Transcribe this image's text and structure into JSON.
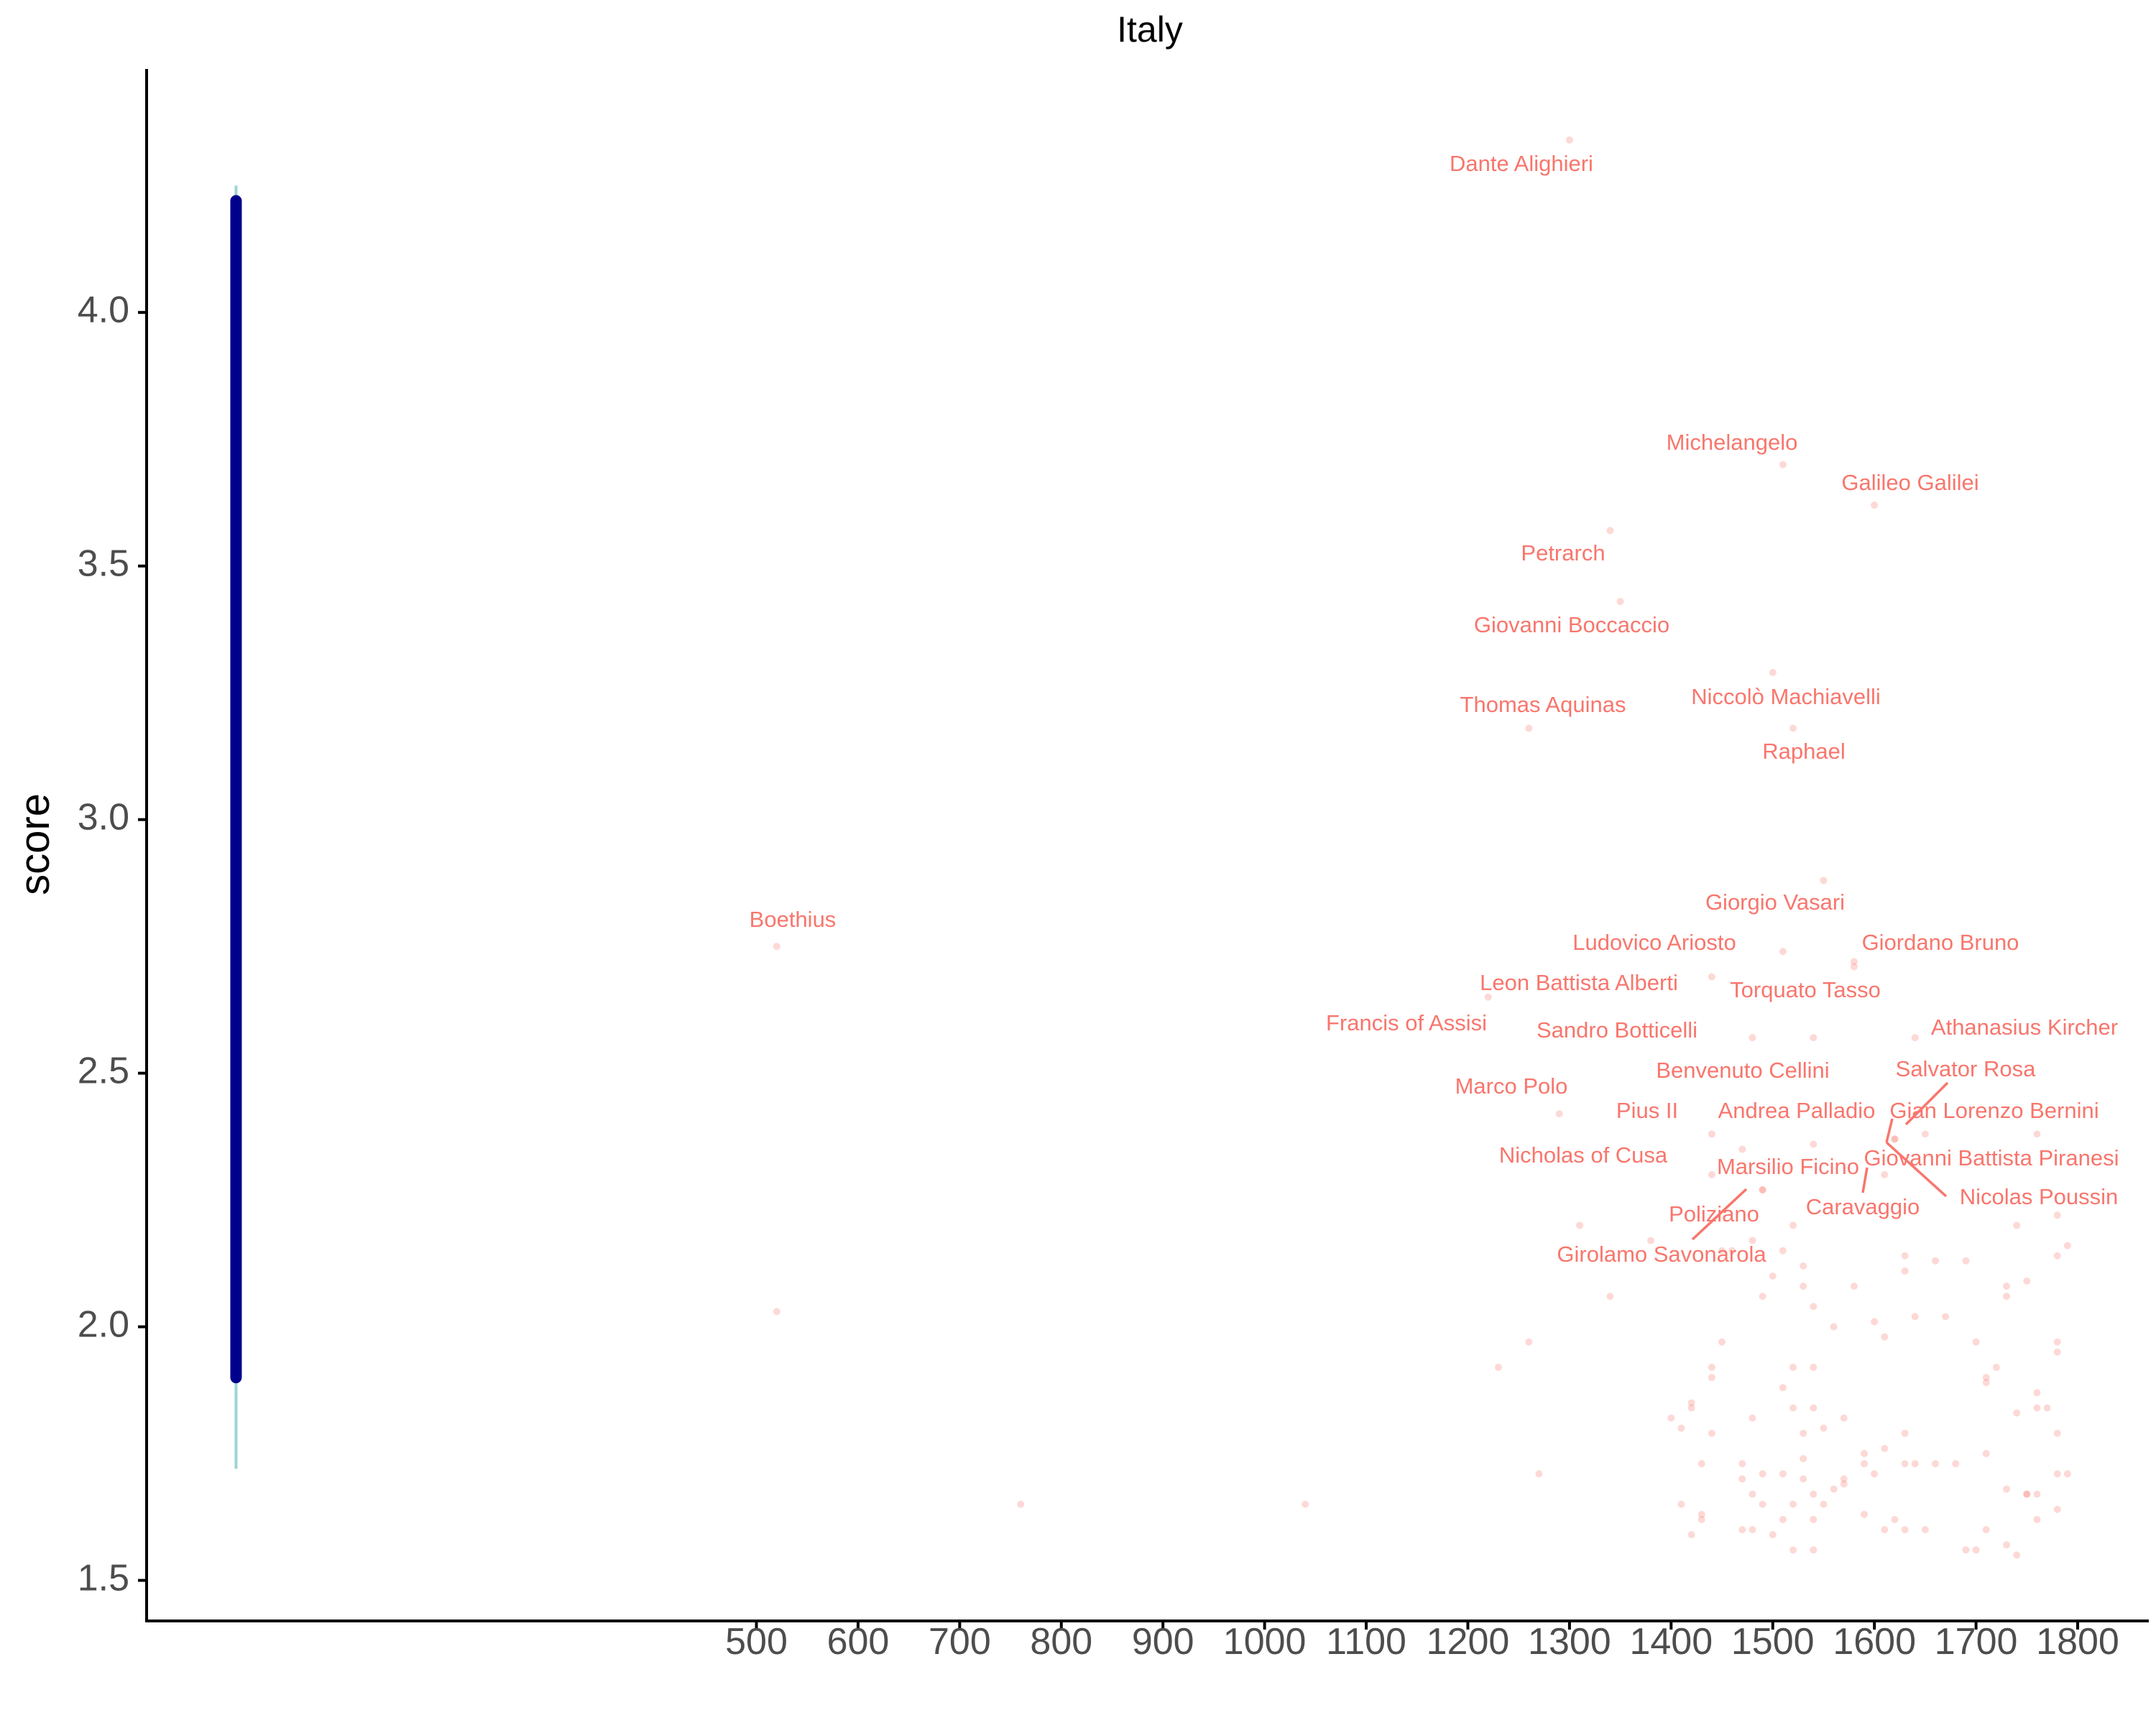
{
  "chart_data": {
    "type": "scatter",
    "title": "Italy",
    "xlabel": "",
    "ylabel": "score",
    "xlim": [
      -100,
      1870
    ],
    "ylim": [
      1.42,
      4.48
    ],
    "x_ticks": [
      "500",
      "600",
      "700",
      "800",
      "900",
      "1000",
      "1100",
      "1200",
      "1300",
      "1400",
      "1500",
      "1600",
      "1700",
      "1800"
    ],
    "y_ticks": [
      "1.5",
      "2.0",
      "2.5",
      "3.0",
      "3.5",
      "4.0"
    ],
    "grid": false,
    "legend": "none",
    "colors": {
      "points": "#f8766d",
      "labels": "#f8766d",
      "interval_outer": "#9fd3d6",
      "interval_inner": "#00008b",
      "axis": "#000000",
      "tick_text": "#4d4d4d"
    },
    "interval": {
      "x": -12,
      "outer": [
        1.72,
        4.25
      ],
      "inner": [
        1.9,
        4.22
      ]
    },
    "labeled_points": [
      {
        "name": "Dante Alighieri",
        "x": 1300,
        "y": 4.34
      },
      {
        "name": "Michelangelo",
        "x": 1510,
        "y": 3.7
      },
      {
        "name": "Galileo Galilei",
        "x": 1600,
        "y": 3.62
      },
      {
        "name": "Petrarch",
        "x": 1340,
        "y": 3.57
      },
      {
        "name": "Giovanni Boccaccio",
        "x": 1350,
        "y": 3.43
      },
      {
        "name": "Niccolò Machiavelli",
        "x": 1500,
        "y": 3.29
      },
      {
        "name": "Thomas Aquinas",
        "x": 1260,
        "y": 3.18
      },
      {
        "name": "Raphael",
        "x": 1520,
        "y": 3.18
      },
      {
        "name": "Boethius",
        "x": 520,
        "y": 2.75
      },
      {
        "name": "Giorgio Vasari",
        "x": 1550,
        "y": 2.88
      },
      {
        "name": "Ludovico Ariosto",
        "x": 1510,
        "y": 2.74
      },
      {
        "name": "Giordano Bruno",
        "x": 1580,
        "y": 2.72
      },
      {
        "name": "Leon Battista Alberti",
        "x": 1440,
        "y": 2.69
      },
      {
        "name": "Torquato Tasso",
        "x": 1580,
        "y": 2.71
      },
      {
        "name": "Francis of Assisi",
        "x": 1220,
        "y": 2.65
      },
      {
        "name": "Sandro Botticelli",
        "x": 1480,
        "y": 2.57
      },
      {
        "name": "Athanasius Kircher",
        "x": 1640,
        "y": 2.57
      },
      {
        "name": "Benvenuto Cellini",
        "x": 1540,
        "y": 2.57
      },
      {
        "name": "Salvator Rosa",
        "x": 1650,
        "y": 2.38
      },
      {
        "name": "Marco Polo",
        "x": 1290,
        "y": 2.42
      },
      {
        "name": "Pius II",
        "x": 1440,
        "y": 2.38
      },
      {
        "name": "Andrea Palladio",
        "x": 1540,
        "y": 2.36
      },
      {
        "name": "Gian Lorenzo Bernini",
        "x": 1760,
        "y": 2.38
      },
      {
        "name": "Nicholas of Cusa",
        "x": 1470,
        "y": 2.35
      },
      {
        "name": "Marsilio Ficino",
        "x": 1440,
        "y": 2.3
      },
      {
        "name": "Giovanni Battista Piranesi",
        "x": 1620,
        "y": 2.37
      },
      {
        "name": "Nicolas Poussin",
        "x": 1620,
        "y": 2.37
      },
      {
        "name": "Poliziano",
        "x": 1490,
        "y": 2.27
      },
      {
        "name": "Caravaggio",
        "x": 1610,
        "y": 2.3
      },
      {
        "name": "Girolamo Savonarola",
        "x": 1490,
        "y": 2.27
      }
    ],
    "points": [
      [
        520,
        2.03
      ],
      [
        760,
        1.65
      ],
      [
        1040,
        1.65
      ],
      [
        1230,
        1.92
      ],
      [
        1260,
        1.97
      ],
      [
        1270,
        1.71
      ],
      [
        1310,
        2.2
      ],
      [
        1340,
        2.06
      ],
      [
        1380,
        2.17
      ],
      [
        1400,
        1.82
      ],
      [
        1410,
        1.8
      ],
      [
        1410,
        1.65
      ],
      [
        1420,
        1.85
      ],
      [
        1420,
        1.84
      ],
      [
        1420,
        1.59
      ],
      [
        1430,
        1.73
      ],
      [
        1430,
        1.63
      ],
      [
        1430,
        1.62
      ],
      [
        1440,
        1.92
      ],
      [
        1440,
        1.9
      ],
      [
        1440,
        1.79
      ],
      [
        1450,
        1.97
      ],
      [
        1450,
        2.15
      ],
      [
        1460,
        2.15
      ],
      [
        1470,
        1.73
      ],
      [
        1470,
        1.6
      ],
      [
        1470,
        1.7
      ],
      [
        1480,
        1.82
      ],
      [
        1480,
        1.67
      ],
      [
        1480,
        1.6
      ],
      [
        1480,
        2.17
      ],
      [
        1490,
        2.06
      ],
      [
        1490,
        1.71
      ],
      [
        1490,
        1.65
      ],
      [
        1500,
        1.59
      ],
      [
        1500,
        2.1
      ],
      [
        1510,
        1.88
      ],
      [
        1510,
        1.71
      ],
      [
        1510,
        1.62
      ],
      [
        1510,
        2.15
      ],
      [
        1520,
        1.92
      ],
      [
        1520,
        1.84
      ],
      [
        1520,
        1.65
      ],
      [
        1520,
        1.56
      ],
      [
        1520,
        2.2
      ],
      [
        1530,
        2.08
      ],
      [
        1530,
        1.79
      ],
      [
        1530,
        1.74
      ],
      [
        1530,
        1.7
      ],
      [
        1530,
        2.12
      ],
      [
        1540,
        1.92
      ],
      [
        1540,
        1.84
      ],
      [
        1540,
        1.67
      ],
      [
        1540,
        1.62
      ],
      [
        1540,
        1.56
      ],
      [
        1540,
        2.04
      ],
      [
        1550,
        1.8
      ],
      [
        1550,
        1.65
      ],
      [
        1560,
        2.0
      ],
      [
        1560,
        1.68
      ],
      [
        1570,
        1.82
      ],
      [
        1570,
        1.7
      ],
      [
        1570,
        1.69
      ],
      [
        1580,
        2.08
      ],
      [
        1590,
        1.75
      ],
      [
        1590,
        1.73
      ],
      [
        1590,
        1.63
      ],
      [
        1600,
        2.01
      ],
      [
        1600,
        1.71
      ],
      [
        1610,
        1.98
      ],
      [
        1610,
        1.76
      ],
      [
        1610,
        1.6
      ],
      [
        1620,
        1.62
      ],
      [
        1630,
        2.14
      ],
      [
        1630,
        2.11
      ],
      [
        1630,
        1.79
      ],
      [
        1630,
        1.73
      ],
      [
        1630,
        1.6
      ],
      [
        1640,
        2.02
      ],
      [
        1640,
        1.73
      ],
      [
        1650,
        1.6
      ],
      [
        1660,
        2.13
      ],
      [
        1660,
        1.73
      ],
      [
        1670,
        2.02
      ],
      [
        1680,
        1.73
      ],
      [
        1690,
        2.13
      ],
      [
        1690,
        1.56
      ],
      [
        1700,
        1.97
      ],
      [
        1700,
        1.56
      ],
      [
        1710,
        1.9
      ],
      [
        1710,
        1.89
      ],
      [
        1710,
        1.75
      ],
      [
        1710,
        1.6
      ],
      [
        1720,
        1.92
      ],
      [
        1730,
        2.08
      ],
      [
        1730,
        2.06
      ],
      [
        1730,
        1.68
      ],
      [
        1730,
        1.57
      ],
      [
        1740,
        1.83
      ],
      [
        1740,
        1.55
      ],
      [
        1740,
        2.2
      ],
      [
        1750,
        2.09
      ],
      [
        1750,
        1.67
      ],
      [
        1750,
        1.67
      ],
      [
        1760,
        1.87
      ],
      [
        1760,
        1.84
      ],
      [
        1760,
        1.67
      ],
      [
        1760,
        1.62
      ],
      [
        1770,
        1.84
      ],
      [
        1780,
        1.97
      ],
      [
        1780,
        1.95
      ],
      [
        1780,
        1.79
      ],
      [
        1780,
        1.71
      ],
      [
        1780,
        1.64
      ],
      [
        1780,
        2.14
      ],
      [
        1780,
        2.22
      ],
      [
        1790,
        2.16
      ],
      [
        1790,
        1.71
      ]
    ]
  }
}
